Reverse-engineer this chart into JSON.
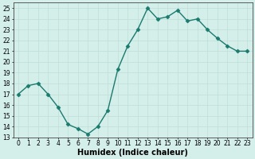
{
  "x": [
    0,
    1,
    2,
    3,
    4,
    5,
    6,
    7,
    8,
    9,
    10,
    11,
    12,
    13,
    14,
    15,
    16,
    17,
    18,
    19,
    20,
    21,
    22,
    23
  ],
  "y": [
    17.0,
    17.8,
    18.0,
    17.0,
    15.8,
    14.2,
    13.8,
    13.3,
    14.0,
    15.5,
    19.3,
    21.5,
    23.0,
    25.0,
    24.0,
    24.2,
    24.8,
    23.8,
    24.0,
    23.0,
    22.2,
    21.5,
    21.0,
    21.0
  ],
  "line_color": "#1a7a6e",
  "marker": "D",
  "marker_size": 2.5,
  "linewidth": 1.0,
  "xlabel": "Humidex (Indice chaleur)",
  "xlim": [
    -0.5,
    23.5
  ],
  "ylim": [
    13,
    25.5
  ],
  "yticks": [
    13,
    14,
    15,
    16,
    17,
    18,
    19,
    20,
    21,
    22,
    23,
    24,
    25
  ],
  "xticks": [
    0,
    1,
    2,
    3,
    4,
    5,
    6,
    7,
    8,
    9,
    10,
    11,
    12,
    13,
    14,
    15,
    16,
    17,
    18,
    19,
    20,
    21,
    22,
    23
  ],
  "bg_color": "#d4eeea",
  "grid_color": "#c0ddd8",
  "tick_fontsize": 5.5,
  "label_fontsize": 7
}
